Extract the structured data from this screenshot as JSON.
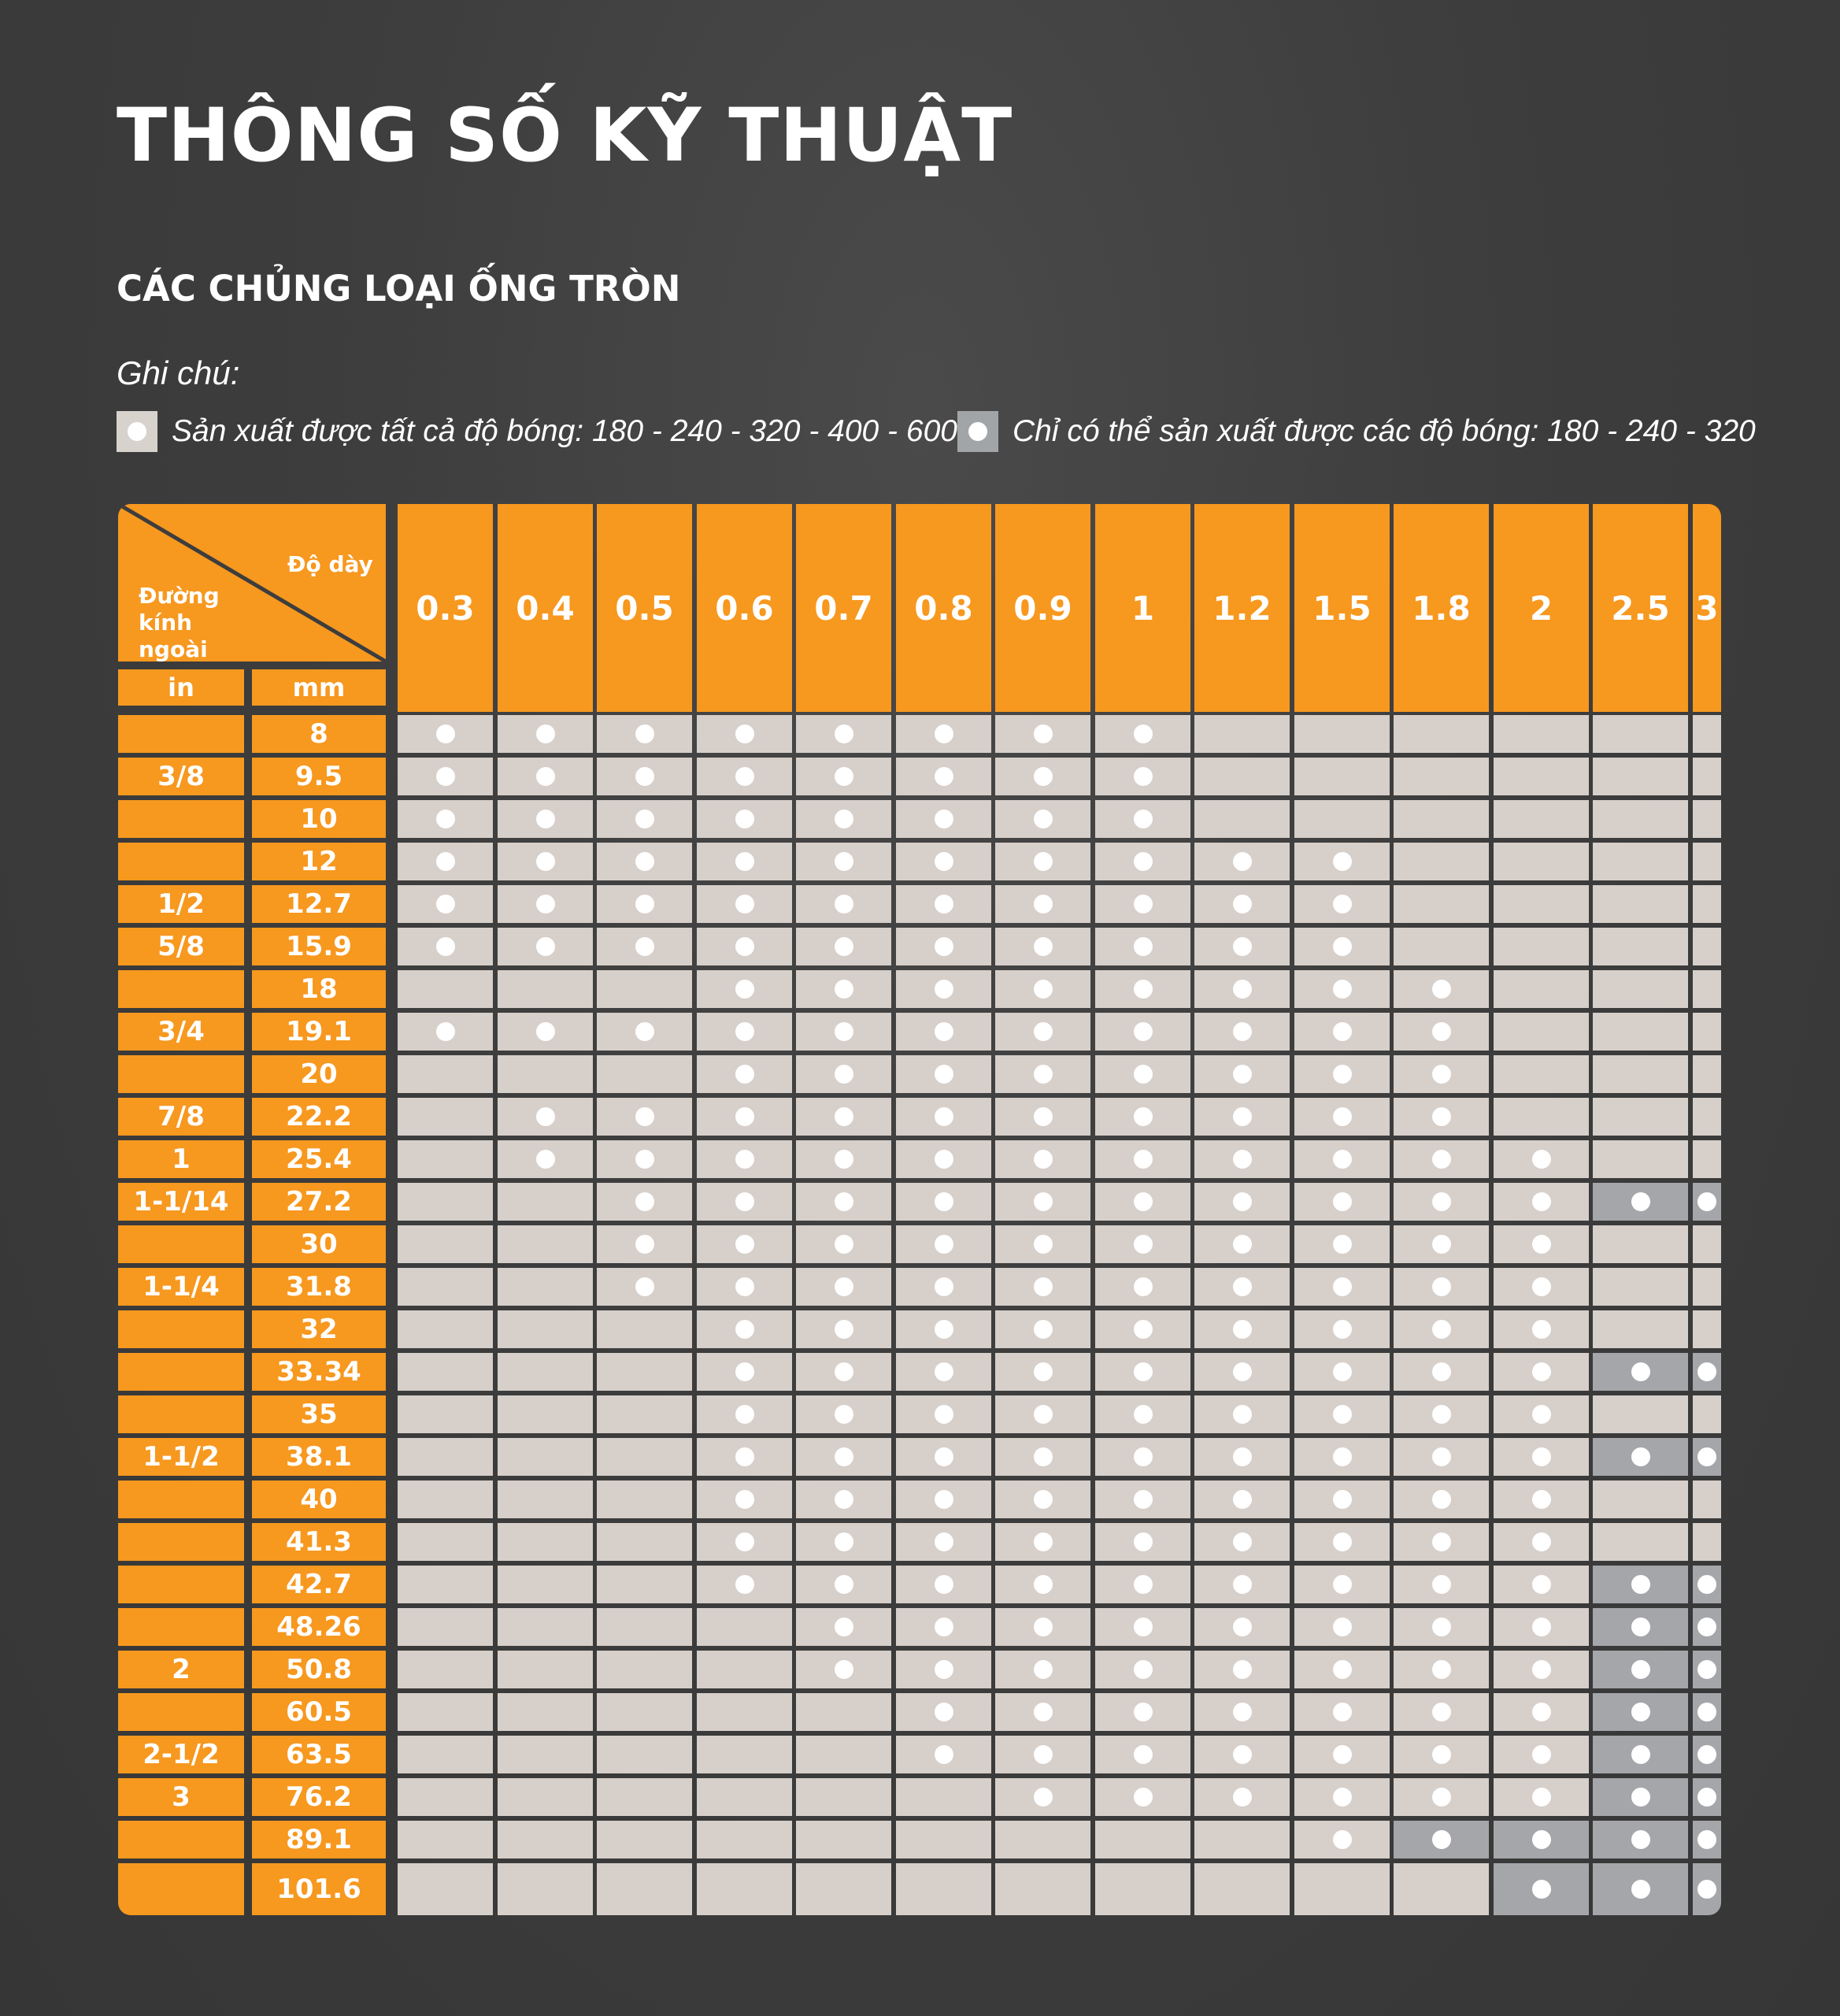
{
  "title": "THÔNG SỐ KỸ THUẬT",
  "subtitle": "CÁC CHỦNG LOẠI ỐNG TRÒN",
  "note_label": "Ghi chú:",
  "legend": [
    {
      "icon": "light-swatch-dot-icon",
      "color": "#d8d2cd",
      "text": "Sản xuất được tất cả độ bóng: 180 - 240 - 320 - 400 - 600"
    },
    {
      "icon": "gray-swatch-dot-icon",
      "color": "#a2a5a8",
      "text": "Chỉ có thể sản xuất được các độ bóng: 180 - 240 - 320"
    }
  ],
  "table": {
    "corner_top": "Độ dày",
    "corner_bottom": "Đường kính ngoài",
    "unit_in": "in",
    "unit_mm": "mm",
    "columns": [
      "0.3",
      "0.4",
      "0.5",
      "0.6",
      "0.7",
      "0.8",
      "0.9",
      "1",
      "1.2",
      "1.5",
      "1.8",
      "2",
      "2.5",
      "3"
    ],
    "cell_key": "0 = no dot, 1 = dot (all gloss levels), 2 = dot on gray (gloss 180-240-320 only)",
    "rows": [
      {
        "in": "",
        "mm": "8",
        "cells": [
          1,
          1,
          1,
          1,
          1,
          1,
          1,
          1,
          0,
          0,
          0,
          0,
          0,
          0
        ]
      },
      {
        "in": "3/8",
        "mm": "9.5",
        "cells": [
          1,
          1,
          1,
          1,
          1,
          1,
          1,
          1,
          0,
          0,
          0,
          0,
          0,
          0
        ]
      },
      {
        "in": "",
        "mm": "10",
        "cells": [
          1,
          1,
          1,
          1,
          1,
          1,
          1,
          1,
          0,
          0,
          0,
          0,
          0,
          0
        ]
      },
      {
        "in": "",
        "mm": "12",
        "cells": [
          1,
          1,
          1,
          1,
          1,
          1,
          1,
          1,
          1,
          1,
          0,
          0,
          0,
          0
        ]
      },
      {
        "in": "1/2",
        "mm": "12.7",
        "cells": [
          1,
          1,
          1,
          1,
          1,
          1,
          1,
          1,
          1,
          1,
          0,
          0,
          0,
          0
        ]
      },
      {
        "in": "5/8",
        "mm": "15.9",
        "cells": [
          1,
          1,
          1,
          1,
          1,
          1,
          1,
          1,
          1,
          1,
          0,
          0,
          0,
          0
        ]
      },
      {
        "in": "",
        "mm": "18",
        "cells": [
          0,
          0,
          0,
          1,
          1,
          1,
          1,
          1,
          1,
          1,
          1,
          0,
          0,
          0
        ]
      },
      {
        "in": "3/4",
        "mm": "19.1",
        "cells": [
          1,
          1,
          1,
          1,
          1,
          1,
          1,
          1,
          1,
          1,
          1,
          0,
          0,
          0
        ]
      },
      {
        "in": "",
        "mm": "20",
        "cells": [
          0,
          0,
          0,
          1,
          1,
          1,
          1,
          1,
          1,
          1,
          1,
          0,
          0,
          0
        ]
      },
      {
        "in": "7/8",
        "mm": "22.2",
        "cells": [
          0,
          1,
          1,
          1,
          1,
          1,
          1,
          1,
          1,
          1,
          1,
          0,
          0,
          0
        ]
      },
      {
        "in": "1",
        "mm": "25.4",
        "cells": [
          0,
          1,
          1,
          1,
          1,
          1,
          1,
          1,
          1,
          1,
          1,
          1,
          0,
          0
        ]
      },
      {
        "in": "1-1/14",
        "mm": "27.2",
        "cells": [
          0,
          0,
          1,
          1,
          1,
          1,
          1,
          1,
          1,
          1,
          1,
          1,
          2,
          2
        ]
      },
      {
        "in": "",
        "mm": "30",
        "cells": [
          0,
          0,
          1,
          1,
          1,
          1,
          1,
          1,
          1,
          1,
          1,
          1,
          0,
          0
        ]
      },
      {
        "in": "1-1/4",
        "mm": "31.8",
        "cells": [
          0,
          0,
          1,
          1,
          1,
          1,
          1,
          1,
          1,
          1,
          1,
          1,
          0,
          0
        ]
      },
      {
        "in": "",
        "mm": "32",
        "cells": [
          0,
          0,
          0,
          1,
          1,
          1,
          1,
          1,
          1,
          1,
          1,
          1,
          0,
          0
        ]
      },
      {
        "in": "",
        "mm": "33.34",
        "cells": [
          0,
          0,
          0,
          1,
          1,
          1,
          1,
          1,
          1,
          1,
          1,
          1,
          2,
          2
        ]
      },
      {
        "in": "",
        "mm": "35",
        "cells": [
          0,
          0,
          0,
          1,
          1,
          1,
          1,
          1,
          1,
          1,
          1,
          1,
          0,
          0
        ]
      },
      {
        "in": "1-1/2",
        "mm": "38.1",
        "cells": [
          0,
          0,
          0,
          1,
          1,
          1,
          1,
          1,
          1,
          1,
          1,
          1,
          2,
          2
        ]
      },
      {
        "in": "",
        "mm": "40",
        "cells": [
          0,
          0,
          0,
          1,
          1,
          1,
          1,
          1,
          1,
          1,
          1,
          1,
          0,
          0
        ]
      },
      {
        "in": "",
        "mm": "41.3",
        "cells": [
          0,
          0,
          0,
          1,
          1,
          1,
          1,
          1,
          1,
          1,
          1,
          1,
          0,
          0
        ]
      },
      {
        "in": "",
        "mm": "42.7",
        "cells": [
          0,
          0,
          0,
          1,
          1,
          1,
          1,
          1,
          1,
          1,
          1,
          1,
          2,
          2
        ]
      },
      {
        "in": "",
        "mm": "48.26",
        "cells": [
          0,
          0,
          0,
          0,
          1,
          1,
          1,
          1,
          1,
          1,
          1,
          1,
          2,
          2
        ]
      },
      {
        "in": "2",
        "mm": "50.8",
        "cells": [
          0,
          0,
          0,
          0,
          1,
          1,
          1,
          1,
          1,
          1,
          1,
          1,
          2,
          2
        ]
      },
      {
        "in": "",
        "mm": "60.5",
        "cells": [
          0,
          0,
          0,
          0,
          0,
          1,
          1,
          1,
          1,
          1,
          1,
          1,
          2,
          2
        ]
      },
      {
        "in": "2-1/2",
        "mm": "63.5",
        "cells": [
          0,
          0,
          0,
          0,
          0,
          1,
          1,
          1,
          1,
          1,
          1,
          1,
          2,
          2
        ]
      },
      {
        "in": "3",
        "mm": "76.2",
        "cells": [
          0,
          0,
          0,
          0,
          0,
          0,
          1,
          1,
          1,
          1,
          1,
          1,
          2,
          2
        ]
      },
      {
        "in": "",
        "mm": "89.1",
        "cells": [
          0,
          0,
          0,
          0,
          0,
          0,
          0,
          0,
          0,
          1,
          2,
          2,
          2,
          2
        ]
      },
      {
        "in": "",
        "mm": "101.6",
        "cells": [
          0,
          0,
          0,
          0,
          0,
          0,
          0,
          0,
          0,
          0,
          0,
          2,
          2,
          2
        ]
      }
    ]
  }
}
